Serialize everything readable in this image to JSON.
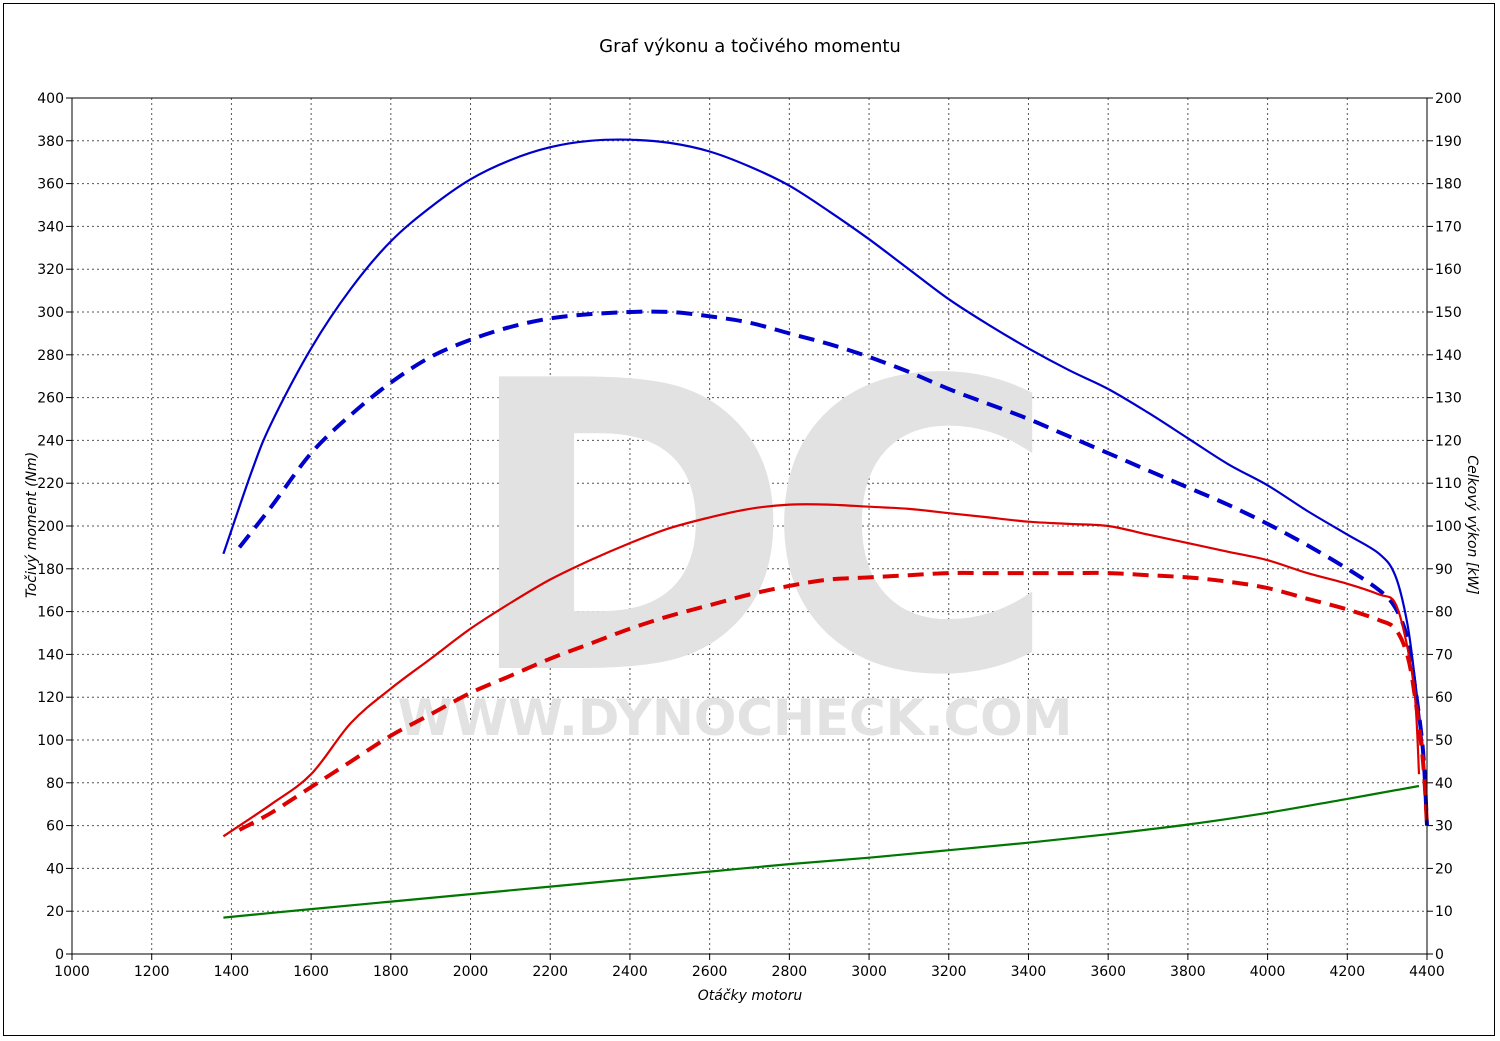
{
  "chart_data": {
    "type": "line",
    "title": "Graf výkonu a točivého momentu",
    "xlabel": "Otáčky motoru",
    "ylabel_left": "Točivý moment (Nm)",
    "ylabel_right": "Celkový výkon [kW]",
    "watermark": "WWW.DYNOCHECK.COM",
    "xlim": [
      1000,
      4400
    ],
    "ylim_left": [
      0,
      400
    ],
    "ylim_right": [
      0,
      200
    ],
    "x_ticks": [
      "1000",
      "1200",
      "1400",
      "1600",
      "1800",
      "2000",
      "2200",
      "2400",
      "2600",
      "2800",
      "3000",
      "3200",
      "3400",
      "3600",
      "3800",
      "4000",
      "4200",
      "4400"
    ],
    "y_ticks_left": [
      "0",
      "20",
      "40",
      "60",
      "80",
      "100",
      "120",
      "140",
      "160",
      "180",
      "200",
      "220",
      "240",
      "260",
      "280",
      "300",
      "320",
      "340",
      "360",
      "380",
      "400"
    ],
    "y_ticks_right": [
      "0",
      "10",
      "20",
      "30",
      "40",
      "50",
      "60",
      "70",
      "80",
      "90",
      "100",
      "110",
      "120",
      "130",
      "140",
      "150",
      "160",
      "170",
      "180",
      "190",
      "200"
    ],
    "grid": true,
    "series": [
      {
        "id": "torque-tuned",
        "axis": "left",
        "color": "#0000cc",
        "dash": "solid",
        "points": [
          [
            1380,
            187
          ],
          [
            1450,
            225
          ],
          [
            1500,
            248
          ],
          [
            1600,
            283
          ],
          [
            1700,
            311
          ],
          [
            1800,
            333
          ],
          [
            1900,
            349
          ],
          [
            2000,
            362
          ],
          [
            2100,
            371
          ],
          [
            2200,
            377
          ],
          [
            2300,
            380
          ],
          [
            2400,
            380.5
          ],
          [
            2500,
            379
          ],
          [
            2600,
            375
          ],
          [
            2700,
            368
          ],
          [
            2800,
            359
          ],
          [
            2900,
            347
          ],
          [
            3000,
            334
          ],
          [
            3100,
            320
          ],
          [
            3200,
            306
          ],
          [
            3300,
            294
          ],
          [
            3400,
            283
          ],
          [
            3500,
            273
          ],
          [
            3600,
            264
          ],
          [
            3700,
            253
          ],
          [
            3800,
            241
          ],
          [
            3900,
            229
          ],
          [
            4000,
            219
          ],
          [
            4100,
            207
          ],
          [
            4200,
            196
          ],
          [
            4280,
            187
          ],
          [
            4320,
            177
          ],
          [
            4350,
            155
          ],
          [
            4370,
            128
          ],
          [
            4390,
            95
          ],
          [
            4400,
            62
          ]
        ]
      },
      {
        "id": "torque-stock",
        "axis": "left",
        "color": "#0000cc",
        "dash": "dashed",
        "points": [
          [
            1420,
            190
          ],
          [
            1500,
            209
          ],
          [
            1600,
            234
          ],
          [
            1700,
            252
          ],
          [
            1800,
            267
          ],
          [
            1900,
            279
          ],
          [
            2000,
            287
          ],
          [
            2100,
            293
          ],
          [
            2200,
            297
          ],
          [
            2300,
            299
          ],
          [
            2400,
            300
          ],
          [
            2500,
            300
          ],
          [
            2600,
            298
          ],
          [
            2700,
            295
          ],
          [
            2800,
            290
          ],
          [
            2900,
            285
          ],
          [
            3000,
            279
          ],
          [
            3100,
            272
          ],
          [
            3200,
            264
          ],
          [
            3300,
            257
          ],
          [
            3400,
            250
          ],
          [
            3500,
            242
          ],
          [
            3600,
            234
          ],
          [
            3700,
            226
          ],
          [
            3800,
            218
          ],
          [
            3900,
            210
          ],
          [
            4000,
            201
          ],
          [
            4100,
            191
          ],
          [
            4200,
            180
          ],
          [
            4280,
            170
          ],
          [
            4320,
            162
          ],
          [
            4350,
            148
          ],
          [
            4370,
            125
          ],
          [
            4390,
            95
          ],
          [
            4400,
            60
          ]
        ]
      },
      {
        "id": "power-tuned",
        "axis": "right",
        "color": "#dd0000",
        "dash": "solid",
        "points": [
          [
            1380,
            27.5
          ],
          [
            1500,
            35
          ],
          [
            1600,
            42
          ],
          [
            1700,
            54
          ],
          [
            1800,
            62
          ],
          [
            1900,
            69
          ],
          [
            2000,
            76
          ],
          [
            2100,
            82
          ],
          [
            2200,
            87.5
          ],
          [
            2300,
            92
          ],
          [
            2400,
            96
          ],
          [
            2500,
            99.5
          ],
          [
            2600,
            102
          ],
          [
            2700,
            104
          ],
          [
            2800,
            105
          ],
          [
            2900,
            105
          ],
          [
            3000,
            104.5
          ],
          [
            3100,
            104
          ],
          [
            3200,
            103
          ],
          [
            3300,
            102
          ],
          [
            3400,
            101
          ],
          [
            3500,
            100.5
          ],
          [
            3600,
            100
          ],
          [
            3700,
            98
          ],
          [
            3800,
            96
          ],
          [
            3900,
            94
          ],
          [
            4000,
            92
          ],
          [
            4100,
            89
          ],
          [
            4200,
            86.5
          ],
          [
            4280,
            84
          ],
          [
            4320,
            82
          ],
          [
            4350,
            72
          ],
          [
            4370,
            60
          ],
          [
            4380,
            42
          ]
        ]
      },
      {
        "id": "power-stock",
        "axis": "right",
        "color": "#dd0000",
        "dash": "dashed",
        "points": [
          [
            1420,
            29
          ],
          [
            1500,
            33
          ],
          [
            1600,
            39
          ],
          [
            1700,
            45
          ],
          [
            1800,
            51
          ],
          [
            1900,
            56
          ],
          [
            2000,
            61
          ],
          [
            2100,
            65
          ],
          [
            2200,
            69
          ],
          [
            2300,
            72.5
          ],
          [
            2400,
            76
          ],
          [
            2500,
            79
          ],
          [
            2600,
            81.5
          ],
          [
            2700,
            84
          ],
          [
            2800,
            86
          ],
          [
            2900,
            87.5
          ],
          [
            3000,
            88
          ],
          [
            3100,
            88.5
          ],
          [
            3200,
            89
          ],
          [
            3300,
            89
          ],
          [
            3400,
            89
          ],
          [
            3500,
            89
          ],
          [
            3600,
            89
          ],
          [
            3700,
            88.5
          ],
          [
            3800,
            88
          ],
          [
            3900,
            87
          ],
          [
            4000,
            85.5
          ],
          [
            4100,
            83
          ],
          [
            4200,
            80.5
          ],
          [
            4280,
            78
          ],
          [
            4320,
            76
          ],
          [
            4350,
            70
          ],
          [
            4370,
            60
          ],
          [
            4390,
            45
          ],
          [
            4400,
            30
          ]
        ]
      },
      {
        "id": "loss",
        "axis": "left",
        "color": "#007700",
        "dash": "solid",
        "points": [
          [
            1380,
            17
          ],
          [
            1600,
            21
          ],
          [
            1800,
            24.5
          ],
          [
            2000,
            28
          ],
          [
            2200,
            31.5
          ],
          [
            2400,
            35
          ],
          [
            2600,
            38.5
          ],
          [
            2800,
            42
          ],
          [
            3000,
            45
          ],
          [
            3200,
            48.5
          ],
          [
            3400,
            52
          ],
          [
            3600,
            56
          ],
          [
            3800,
            60.5
          ],
          [
            4000,
            66
          ],
          [
            4200,
            72.5
          ],
          [
            4380,
            78.5
          ]
        ]
      }
    ]
  }
}
